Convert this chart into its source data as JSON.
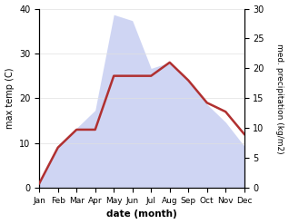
{
  "months": [
    "Jan",
    "Feb",
    "Mar",
    "Apr",
    "May",
    "Jun",
    "Jul",
    "Aug",
    "Sep",
    "Oct",
    "Nov",
    "Dec"
  ],
  "temperature": [
    1,
    9,
    13,
    13,
    25,
    25,
    25,
    28,
    24,
    19,
    17,
    12
  ],
  "precipitation": [
    1,
    7,
    10,
    13,
    29,
    28,
    20,
    21,
    18,
    14,
    11,
    7
  ],
  "temp_ylim": [
    0,
    40
  ],
  "precip_ylim": [
    0,
    30
  ],
  "temp_color": "#b03030",
  "precip_fill_color": "#c0c8f0",
  "precip_fill_alpha": 0.75,
  "xlabel": "date (month)",
  "ylabel_left": "max temp (C)",
  "ylabel_right": "med. precipitation (kg/m2)",
  "background_color": "#ffffff",
  "temp_linewidth": 1.8,
  "left_yticks": [
    0,
    10,
    20,
    30,
    40
  ],
  "right_yticks": [
    0,
    5,
    10,
    15,
    20,
    25,
    30
  ],
  "figsize": [
    3.18,
    2.47
  ],
  "dpi": 100
}
